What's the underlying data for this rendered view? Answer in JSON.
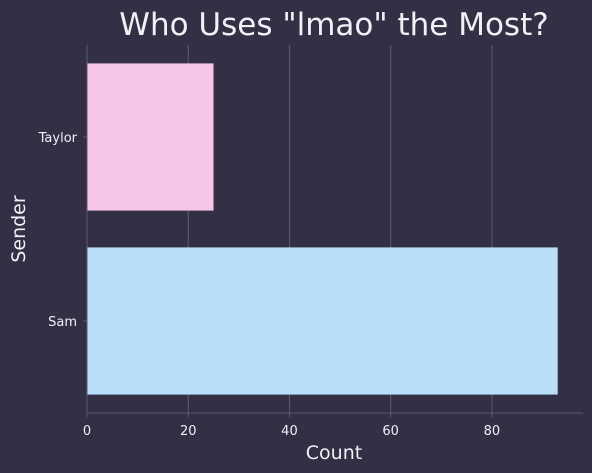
{
  "chart_data": {
    "type": "bar",
    "orientation": "horizontal",
    "title": "Who Uses \"lmao\" the Most?",
    "xlabel": "Count",
    "ylabel": "Sender",
    "categories": [
      "Taylor",
      "Sam"
    ],
    "values": [
      25,
      93
    ],
    "colors": [
      "#f7c5e5",
      "#b8dff7"
    ],
    "xlim": [
      0,
      98
    ],
    "xticks": [
      0,
      20,
      40,
      60,
      80
    ],
    "grid": "vertical",
    "background": "#332f45",
    "grid_color": "#5e5a70",
    "text_color": "#f2f0f5"
  }
}
